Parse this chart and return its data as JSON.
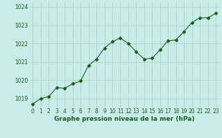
{
  "x": [
    0,
    1,
    2,
    3,
    4,
    5,
    6,
    7,
    8,
    9,
    10,
    11,
    12,
    13,
    14,
    15,
    16,
    17,
    18,
    19,
    20,
    21,
    22,
    23
  ],
  "y": [
    1018.7,
    1019.0,
    1019.1,
    1019.6,
    1019.55,
    1019.8,
    1019.95,
    1020.8,
    1021.15,
    1021.75,
    1022.1,
    1022.3,
    1022.0,
    1021.55,
    1021.15,
    1021.2,
    1021.65,
    1022.15,
    1022.2,
    1022.65,
    1023.15,
    1023.4,
    1023.4,
    1023.65
  ],
  "ylim": [
    1018.5,
    1024.3
  ],
  "yticks": [
    1019,
    1020,
    1021,
    1022,
    1023,
    1024
  ],
  "xticks": [
    0,
    1,
    2,
    3,
    4,
    5,
    6,
    7,
    8,
    9,
    10,
    11,
    12,
    13,
    14,
    15,
    16,
    17,
    18,
    19,
    20,
    21,
    22,
    23
  ],
  "line_color": "#1a5c1a",
  "marker": "D",
  "marker_size": 2.5,
  "bg_color": "#c8ede8",
  "grid_color": "#a8cdc8",
  "xlabel": "Graphe pression niveau de la mer (hPa)",
  "xlabel_color": "#1a5c1a",
  "tick_color": "#1a5c1a",
  "axis_label_fontsize": 6.5,
  "tick_fontsize": 5.5
}
